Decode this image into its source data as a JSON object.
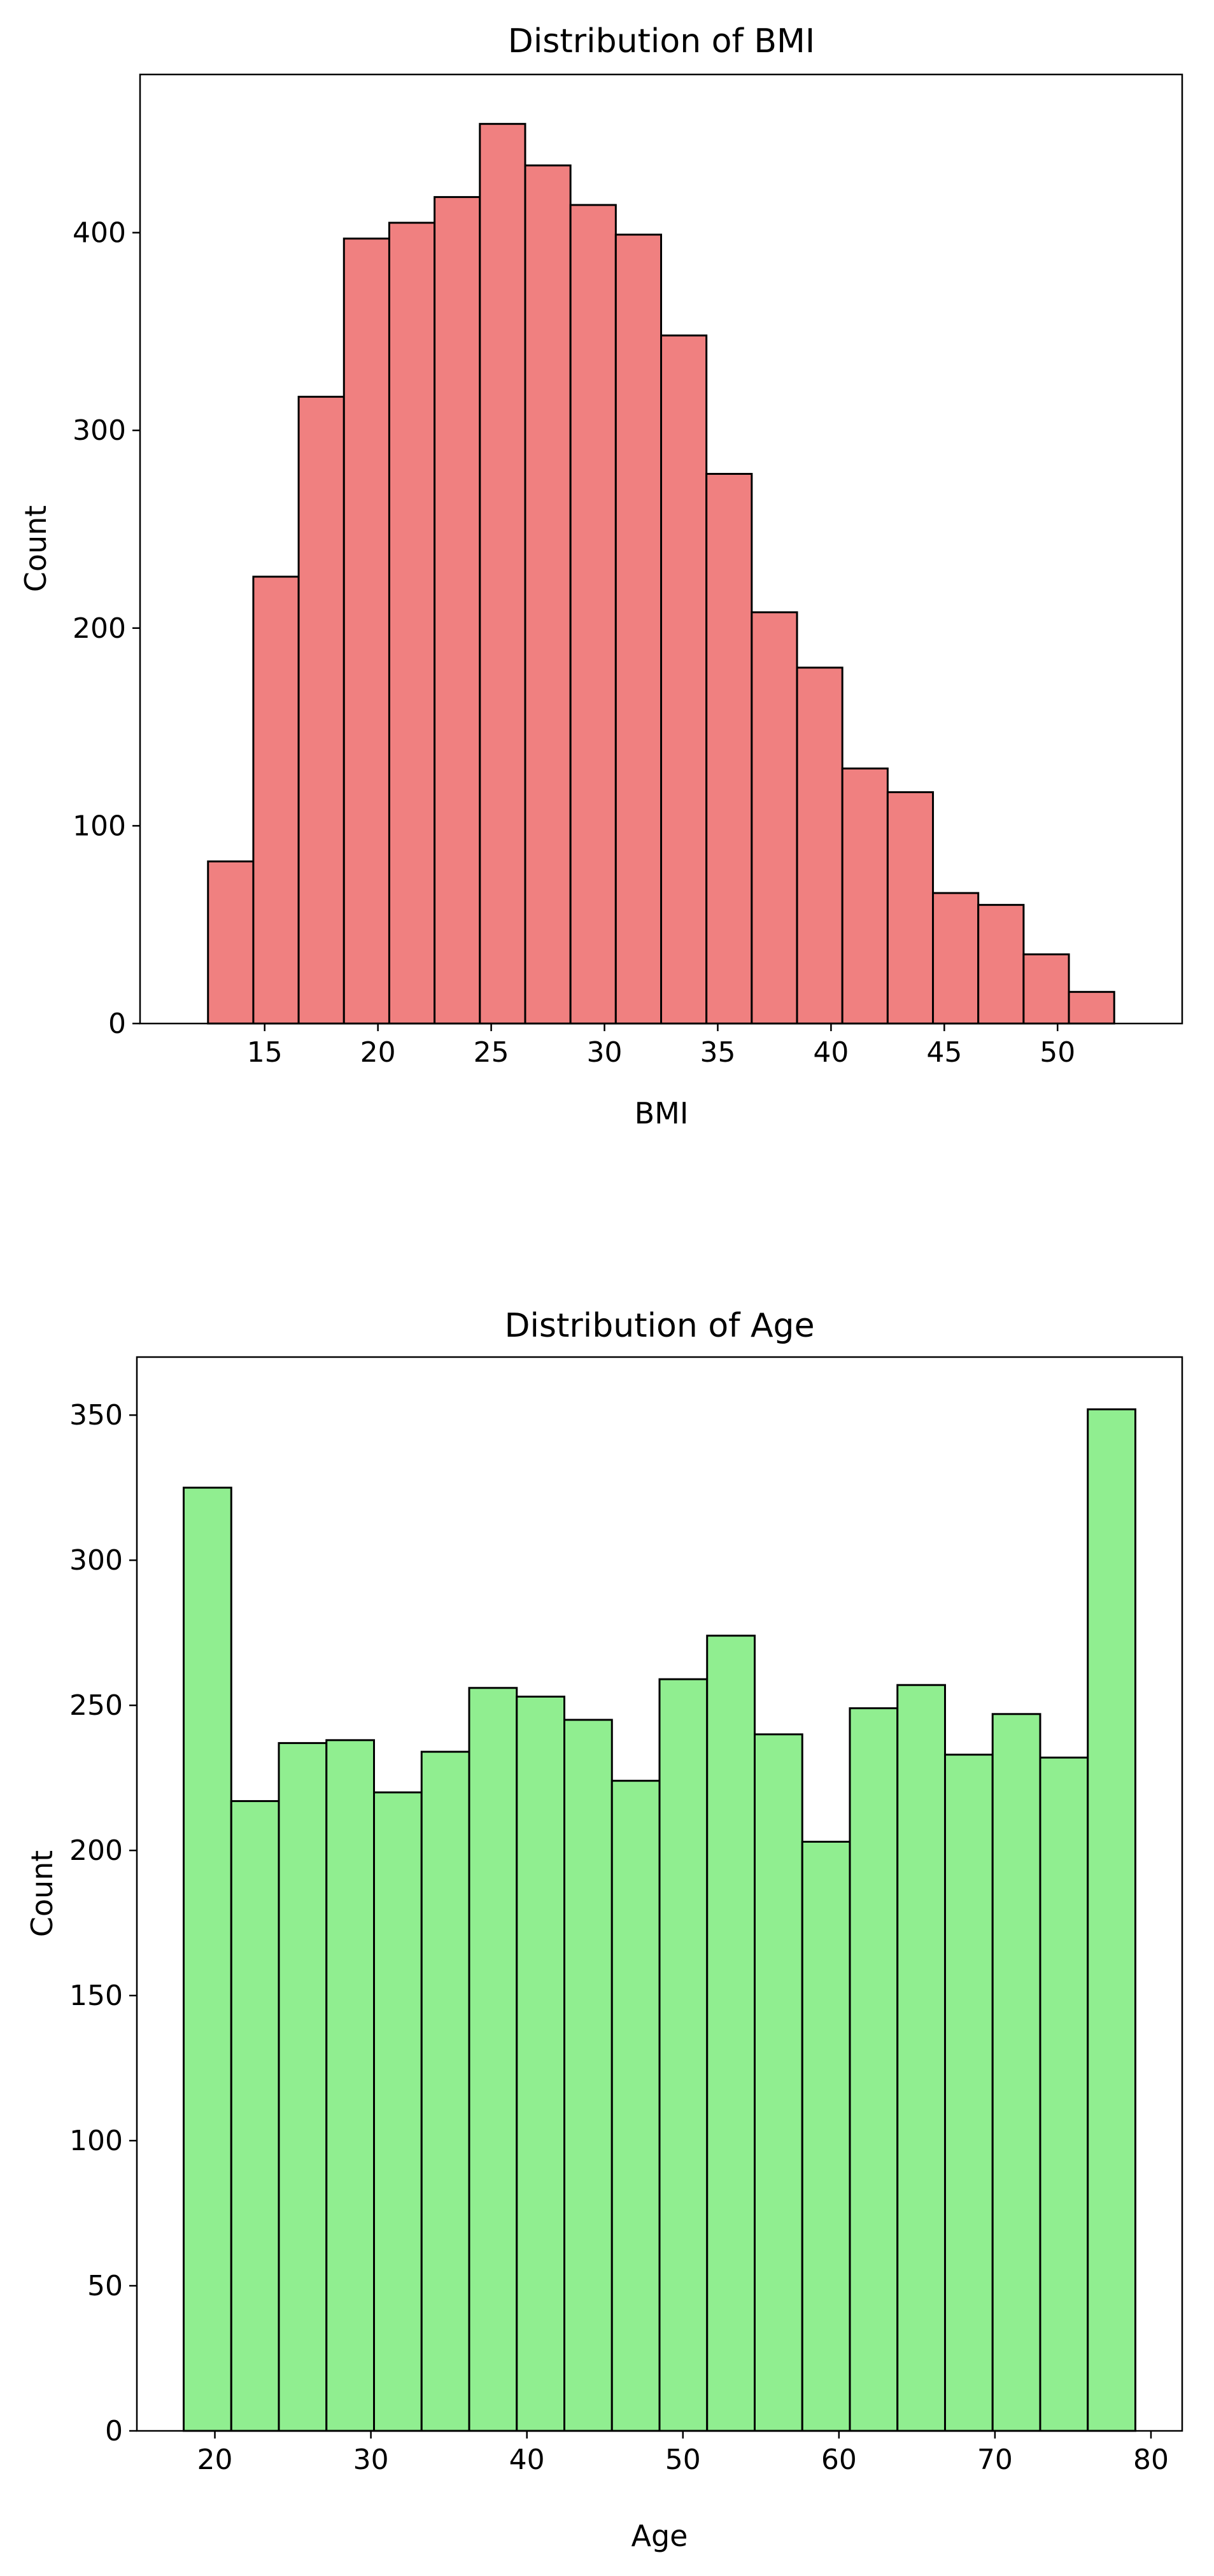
{
  "chart_data": [
    {
      "type": "histogram",
      "title": "Distribution of BMI",
      "xlabel": "BMI",
      "ylabel": "Count",
      "bar_color": "#f08080",
      "edge_color": "#000000",
      "bin_edges": [
        12.5,
        14.5,
        16.5,
        18.5,
        20.5,
        22.5,
        24.5,
        26.5,
        28.5,
        30.5,
        32.5,
        34.5,
        36.5,
        38.5,
        40.5,
        42.5,
        44.5,
        46.5,
        48.5,
        50.5,
        52.5
      ],
      "values": [
        82,
        226,
        317,
        397,
        405,
        418,
        455,
        434,
        414,
        399,
        348,
        278,
        208,
        180,
        129,
        117,
        66,
        60,
        35,
        16
      ],
      "xlim": [
        9.5,
        55.5
      ],
      "ylim": [
        0,
        480
      ],
      "xticks": [
        15,
        20,
        25,
        30,
        35,
        40,
        45,
        50
      ],
      "yticks": [
        0,
        100,
        200,
        300,
        400
      ]
    },
    {
      "type": "histogram",
      "title": "Distribution of Age",
      "xlabel": "Age",
      "ylabel": "Count",
      "bar_color": "#90ee90",
      "edge_color": "#000000",
      "bin_edges": [
        18,
        21.05,
        24.1,
        27.15,
        30.2,
        33.25,
        36.3,
        39.35,
        42.4,
        45.45,
        48.5,
        51.55,
        54.6,
        57.65,
        60.7,
        63.75,
        66.8,
        69.85,
        72.9,
        75.95,
        79
      ],
      "values": [
        325,
        217,
        237,
        238,
        220,
        234,
        256,
        253,
        245,
        224,
        259,
        274,
        240,
        203,
        249,
        257,
        233,
        247,
        232,
        352
      ],
      "xlim": [
        15,
        82
      ],
      "ylim": [
        0,
        370
      ],
      "xticks": [
        20,
        30,
        40,
        50,
        60,
        70,
        80
      ],
      "yticks": [
        0,
        50,
        100,
        150,
        200,
        250,
        300,
        350
      ]
    }
  ]
}
